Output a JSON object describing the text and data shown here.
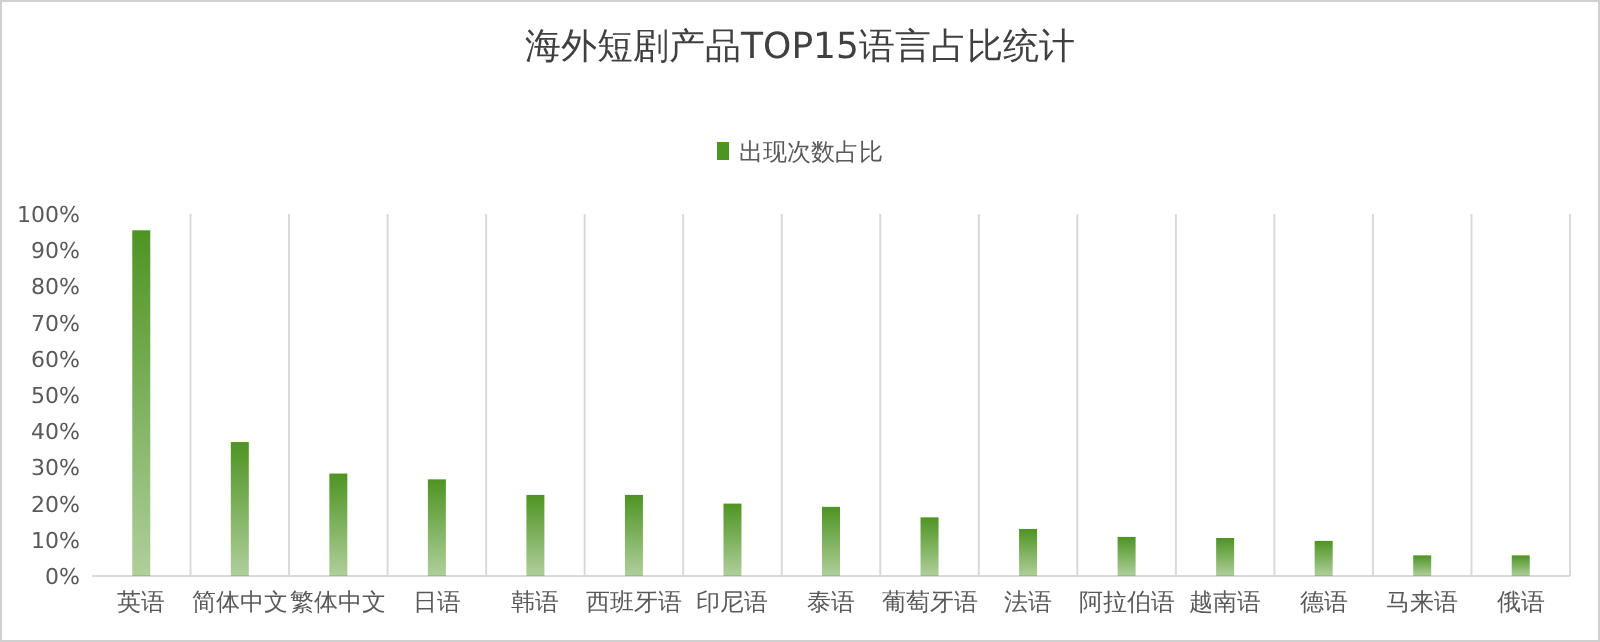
{
  "chart_data": {
    "type": "bar",
    "title": "海外短剧产品TOP15语言占比统计",
    "categories": [
      "英语",
      "简体中文",
      "繁体中文",
      "日语",
      "韩语",
      "西班牙语",
      "印尼语",
      "泰语",
      "葡萄牙语",
      "法语",
      "阿拉伯语",
      "越南语",
      "德语",
      "马来语",
      "俄语"
    ],
    "series": [
      {
        "name": "出现次数占比",
        "color": "#4e9422",
        "values": [
          95.5,
          37,
          28.3,
          26.7,
          22.4,
          22.4,
          20,
          19.1,
          16.2,
          13,
          10.8,
          10.5,
          9.7,
          5.7,
          5.7
        ]
      }
    ],
    "ylim": [
      0,
      100
    ],
    "yticks": [
      {
        "value": 0,
        "label": "0%"
      },
      {
        "value": 10,
        "label": "10%"
      },
      {
        "value": 20,
        "label": "20%"
      },
      {
        "value": 30,
        "label": "30%"
      },
      {
        "value": 40,
        "label": "40%"
      },
      {
        "value": 50,
        "label": "50%"
      },
      {
        "value": 60,
        "label": "60%"
      },
      {
        "value": 70,
        "label": "70%"
      },
      {
        "value": 80,
        "label": "80%"
      },
      {
        "value": 90,
        "label": "90%"
      },
      {
        "value": 100,
        "label": "100%"
      }
    ],
    "grid": "x",
    "legend": "top"
  }
}
